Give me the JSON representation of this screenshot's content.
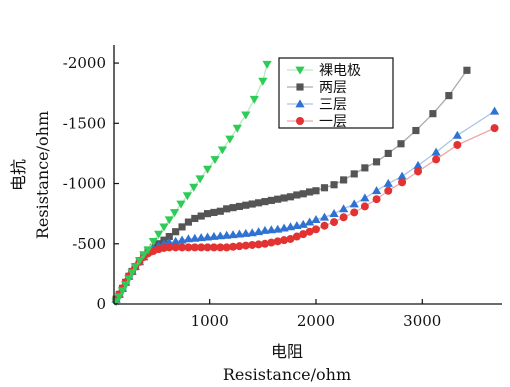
{
  "chart_data": {
    "type": "scatter",
    "title": "",
    "xlabel_cn": "电阻",
    "xlabel_en": "Resistance/ohm",
    "ylabel_cn": "电抗",
    "ylabel_en": "Resistance/ohm",
    "xlim": [
      100,
      3750
    ],
    "ylim": [
      0,
      -2150
    ],
    "xticks": [
      1000,
      2000,
      3000
    ],
    "xtick_labels": [
      "1000",
      "2000",
      "3000"
    ],
    "yticks": [
      0,
      -500,
      -1000,
      -1500,
      -2000
    ],
    "ytick_labels": [
      "0",
      "-500",
      "-1000",
      "-1500",
      "-2000"
    ],
    "legend_position": "top-right",
    "series": [
      {
        "name": "裸电极",
        "marker": "triangle-down",
        "color": "#2ecc57",
        "line_color": "#b6e9c3",
        "x": [
          120,
          150,
          180,
          210,
          240,
          270,
          300,
          340,
          380,
          420,
          470,
          520,
          570,
          620,
          670,
          730,
          790,
          850,
          910,
          980,
          1050,
          1120,
          1190,
          1260,
          1340,
          1420,
          1500,
          1540
        ],
        "y": [
          -20,
          -60,
          -110,
          -160,
          -210,
          -260,
          -310,
          -360,
          -410,
          -450,
          -520,
          -580,
          -640,
          -700,
          -760,
          -830,
          -900,
          -970,
          -1040,
          -1120,
          -1200,
          -1280,
          -1370,
          -1460,
          -1570,
          -1700,
          -1850,
          -1990
        ]
      },
      {
        "name": "两层",
        "marker": "square",
        "color": "#555555",
        "line_color": "#aaaaaa",
        "x": [
          120,
          150,
          180,
          210,
          240,
          270,
          300,
          340,
          380,
          420,
          470,
          520,
          570,
          620,
          680,
          740,
          800,
          860,
          920,
          980,
          1040,
          1100,
          1160,
          1220,
          1280,
          1340,
          1400,
          1460,
          1520,
          1580,
          1640,
          1700,
          1760,
          1820,
          1880,
          1940,
          2000,
          2080,
          2170,
          2260,
          2360,
          2460,
          2570,
          2680,
          2800,
          2940,
          3100,
          3250,
          3420
        ],
        "y": [
          -40,
          -80,
          -130,
          -180,
          -230,
          -270,
          -310,
          -360,
          -400,
          -440,
          -470,
          -500,
          -530,
          -560,
          -600,
          -640,
          -680,
          -710,
          -730,
          -750,
          -760,
          -770,
          -790,
          -800,
          -810,
          -820,
          -830,
          -840,
          -850,
          -860,
          -870,
          -880,
          -890,
          -905,
          -915,
          -930,
          -940,
          -965,
          -990,
          -1030,
          -1080,
          -1130,
          -1180,
          -1250,
          -1330,
          -1440,
          -1580,
          -1730,
          -1940
        ]
      },
      {
        "name": "三层",
        "marker": "triangle-up",
        "color": "#2e72d2",
        "line_color": "#a9c4ea",
        "x": [
          120,
          150,
          180,
          210,
          240,
          270,
          300,
          340,
          380,
          420,
          470,
          520,
          570,
          620,
          680,
          740,
          800,
          860,
          920,
          980,
          1040,
          1100,
          1160,
          1220,
          1280,
          1340,
          1400,
          1460,
          1520,
          1580,
          1640,
          1700,
          1760,
          1820,
          1880,
          1940,
          2000,
          2080,
          2170,
          2260,
          2360,
          2460,
          2570,
          2680,
          2810,
          2960,
          3130,
          3330,
          3680
        ],
        "y": [
          -40,
          -80,
          -130,
          -180,
          -230,
          -270,
          -310,
          -350,
          -390,
          -430,
          -460,
          -480,
          -500,
          -510,
          -520,
          -530,
          -540,
          -545,
          -550,
          -555,
          -560,
          -565,
          -570,
          -575,
          -580,
          -585,
          -590,
          -600,
          -610,
          -615,
          -620,
          -630,
          -640,
          -650,
          -660,
          -680,
          -700,
          -720,
          -750,
          -790,
          -830,
          -880,
          -940,
          -1000,
          -1060,
          -1150,
          -1260,
          -1400,
          -1600
        ]
      },
      {
        "name": "一层",
        "marker": "circle",
        "color": "#e23232",
        "line_color": "#f0a6a6",
        "x": [
          120,
          150,
          180,
          210,
          240,
          270,
          300,
          340,
          380,
          420,
          470,
          520,
          570,
          620,
          680,
          740,
          800,
          860,
          920,
          980,
          1040,
          1100,
          1160,
          1220,
          1280,
          1340,
          1400,
          1460,
          1520,
          1580,
          1640,
          1700,
          1760,
          1820,
          1880,
          1940,
          2000,
          2080,
          2170,
          2260,
          2360,
          2460,
          2570,
          2680,
          2810,
          2960,
          3130,
          3330,
          3680
        ],
        "y": [
          -40,
          -80,
          -130,
          -180,
          -230,
          -270,
          -310,
          -350,
          -390,
          -420,
          -440,
          -455,
          -465,
          -470,
          -470,
          -470,
          -470,
          -470,
          -470,
          -470,
          -470,
          -470,
          -470,
          -475,
          -480,
          -485,
          -490,
          -495,
          -500,
          -510,
          -520,
          -530,
          -540,
          -560,
          -580,
          -600,
          -620,
          -650,
          -680,
          -720,
          -760,
          -810,
          -870,
          -940,
          -1010,
          -1100,
          -1200,
          -1320,
          -1460
        ]
      }
    ]
  }
}
